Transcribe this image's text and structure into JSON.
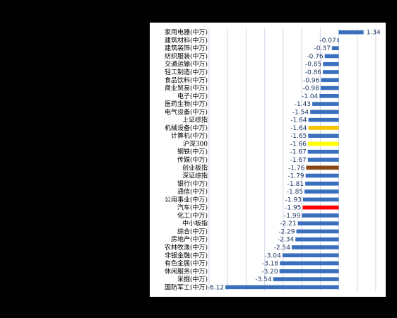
{
  "chart_data": {
    "type": "bar",
    "orientation": "horizontal",
    "categories": [
      "家用电器(中万)",
      "建筑材料(中万)",
      "建筑装饰(中万)",
      "纺织服装(中万)",
      "交通运输(中万)",
      "轻工制造(中万)",
      "食品饮料(中万)",
      "商业贸易(中万)",
      "电子(中万)",
      "医药生物(中万)",
      "电气设备(中万)",
      "上证综指",
      "机械设备(中万)",
      "计算机(中万)",
      "沪深300",
      "钢铁(中万)",
      "传媒(中万)",
      "创业板指",
      "深证综指",
      "银行(中万)",
      "通信(中万)",
      "公用事业(中万)",
      "汽车(中万)",
      "化工(中万)",
      "中小板指",
      "综合(中万)",
      "房地产(中万)",
      "农林牧渔(中万)",
      "非银金融(中万)",
      "有色金属(中万)",
      "休闲服务(中万)",
      "采掘(中万)",
      "国防军工(中万)"
    ],
    "values": [
      1.34,
      -0.07,
      -0.37,
      -0.76,
      -0.85,
      -0.86,
      -0.96,
      -0.98,
      -1.04,
      -1.43,
      -1.54,
      -1.64,
      -1.64,
      -1.65,
      -1.66,
      -1.67,
      -1.67,
      -1.76,
      -1.79,
      -1.81,
      -1.85,
      -1.93,
      -1.95,
      -1.99,
      -2.21,
      -2.29,
      -2.34,
      -2.54,
      -3.04,
      -3.18,
      -3.2,
      -3.54,
      -6.12
    ],
    "value_labels": [
      "1.34",
      "-0.07",
      "-0.37",
      "-0.76",
      "-0.85",
      "-0.86",
      "-0.96",
      "-0.98",
      "-1.04",
      "-1.43",
      "-1.54",
      "-1.64",
      "-1.64",
      "-1.65",
      "-1.66",
      "-1.67",
      "-1.67",
      "-1.76",
      "-1.79",
      "-1.81",
      "-1.85",
      "-1.93",
      "-1.95",
      "-1.99",
      "-2.21",
      "-2.29",
      "-2.34",
      "-2.54",
      "-3.04",
      "-3.18",
      "-3.20",
      "-3.54",
      "-6.12"
    ],
    "xlim": [
      -7,
      2
    ],
    "grid": true,
    "colors": {
      "default": "#3a6fbe",
      "highlights": {
        "机械设备(中万)": "#f5c400",
        "沪深300": "#ffff00",
        "创业板指": "#8b4513",
        "汽车(中万)": "#ff0000"
      }
    }
  }
}
